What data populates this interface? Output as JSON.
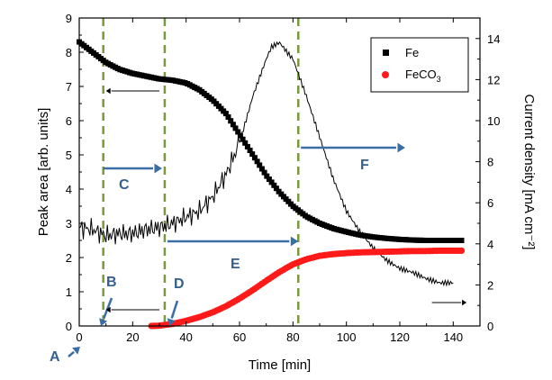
{
  "chart_data": {
    "type": "scatter",
    "xlabel": "Time  [min]",
    "ylabel_left": "Peak area  [arb. units]",
    "ylabel_right": "Current density  [mA cm⁻²]",
    "xlim": [
      0,
      150
    ],
    "ylim_left": [
      0,
      9
    ],
    "ylim_right": [
      0,
      15
    ],
    "x_ticks": [
      "0",
      "20",
      "40",
      "60",
      "80",
      "100",
      "120",
      "140"
    ],
    "y_left_ticks": [
      "0",
      "1",
      "2",
      "3",
      "4",
      "5",
      "6",
      "7",
      "8",
      "9"
    ],
    "y_right_ticks": [
      "0",
      "2",
      "4",
      "6",
      "8",
      "10",
      "12",
      "14"
    ],
    "legend": {
      "placement": "top-right",
      "entries": [
        {
          "label": "Fe",
          "marker": "square",
          "color": "#000000"
        },
        {
          "label": "FeCO",
          "subscript": "3",
          "marker": "circle",
          "color": "#ff1a1a"
        }
      ]
    },
    "series": [
      {
        "name": "Fe",
        "axis": "left",
        "style": "markers",
        "color": "#000000",
        "x": [
          0,
          5,
          10,
          15,
          20,
          25,
          30,
          35,
          40,
          45,
          50,
          55,
          60,
          65,
          70,
          75,
          80,
          85,
          90,
          95,
          100,
          105,
          110,
          115,
          120,
          125,
          130,
          135,
          140,
          144
        ],
        "y": [
          8.3,
          8.0,
          7.7,
          7.5,
          7.38,
          7.3,
          7.22,
          7.18,
          7.1,
          6.9,
          6.6,
          6.2,
          5.6,
          5.0,
          4.4,
          3.9,
          3.5,
          3.2,
          3.0,
          2.85,
          2.75,
          2.66,
          2.6,
          2.56,
          2.53,
          2.51,
          2.5,
          2.5,
          2.5,
          2.5
        ]
      },
      {
        "name": "FeCO3",
        "axis": "left",
        "style": "markers",
        "color": "#ff1a1a",
        "x": [
          27,
          30,
          35,
          40,
          45,
          50,
          55,
          60,
          65,
          70,
          75,
          80,
          85,
          90,
          95,
          100,
          105,
          110,
          115,
          120,
          125,
          130,
          135,
          140,
          144
        ],
        "y": [
          0.0,
          0.01,
          0.06,
          0.15,
          0.26,
          0.4,
          0.58,
          0.8,
          1.05,
          1.32,
          1.58,
          1.8,
          1.95,
          2.05,
          2.1,
          2.13,
          2.15,
          2.16,
          2.17,
          2.18,
          2.19,
          2.19,
          2.2,
          2.2,
          2.2
        ]
      },
      {
        "name": "Current density",
        "axis": "right",
        "style": "line",
        "color": "#000000",
        "x": [
          0,
          5,
          10,
          15,
          20,
          25,
          30,
          35,
          40,
          45,
          50,
          55,
          60,
          65,
          70,
          72,
          75,
          78,
          80,
          85,
          90,
          95,
          100,
          105,
          110,
          115,
          120,
          125,
          130,
          135,
          140
        ],
        "y": [
          4.8,
          4.7,
          4.4,
          4.5,
          4.5,
          4.7,
          4.8,
          5.0,
          5.3,
          5.6,
          6.3,
          7.4,
          8.9,
          11.2,
          13.0,
          13.6,
          13.8,
          13.3,
          13.0,
          11.2,
          9.2,
          7.2,
          5.6,
          4.6,
          3.8,
          3.2,
          2.8,
          2.6,
          2.3,
          2.1,
          2.1
        ]
      }
    ],
    "vertical_lines_x": [
      9,
      32,
      82
    ],
    "region_labels": [
      "A",
      "B",
      "C",
      "D",
      "E",
      "F"
    ]
  }
}
